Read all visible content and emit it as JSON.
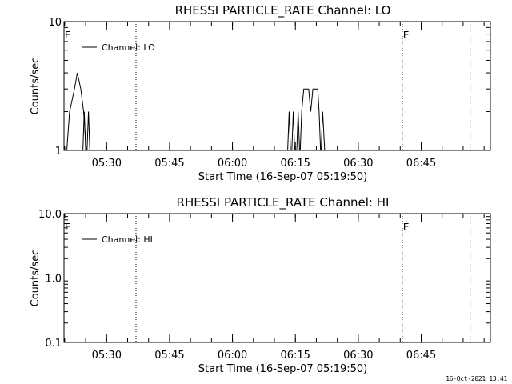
{
  "chart_data": [
    {
      "type": "line",
      "title": "RHESSI PARTICLE_RATE Channel: LO",
      "xlabel": "Start Time (16-Sep-07 05:19:50)",
      "ylabel": "Counts/sec",
      "yscale": "log",
      "ylim": [
        1,
        10
      ],
      "ytick_labels": [
        "1",
        "10"
      ],
      "xlim": [
        "05:19:50",
        "07:01:30"
      ],
      "xtick_labels": [
        "05:30",
        "05:45",
        "06:00",
        "06:15",
        "06:30",
        "06:45"
      ],
      "legend": {
        "label": "Channel: LO",
        "placement": "top-left"
      },
      "markers": {
        "label": "E",
        "times": [
          "05:19:50",
          "06:40:30"
        ]
      },
      "vlines": [
        "05:37:00",
        "06:40:30",
        "06:56:40"
      ],
      "series": [
        {
          "name": "Channel: LO",
          "segments": [
            [
              [
                "05:20:30",
                1
              ],
              [
                "05:21:10",
                2
              ],
              [
                "05:22:20",
                3
              ],
              [
                "05:23:00",
                4
              ],
              [
                "05:23:50",
                3
              ],
              [
                "05:24:30",
                2
              ],
              [
                "05:25:10",
                1
              ]
            ],
            [
              [
                "05:24:20",
                1
              ],
              [
                "05:24:40",
                2
              ],
              [
                "05:25:00",
                1
              ]
            ],
            [
              [
                "05:25:20",
                1
              ],
              [
                "05:25:40",
                2
              ],
              [
                "05:26:00",
                1
              ]
            ],
            [
              [
                "06:13:10",
                1
              ],
              [
                "06:13:30",
                2
              ],
              [
                "06:13:50",
                1
              ]
            ],
            [
              [
                "06:14:10",
                1
              ],
              [
                "06:14:30",
                2
              ],
              [
                "06:14:50",
                1
              ]
            ],
            [
              [
                "06:15:20",
                1
              ],
              [
                "06:15:40",
                2
              ],
              [
                "06:16:00",
                1
              ]
            ],
            [
              [
                "06:16:10",
                1
              ],
              [
                "06:16:30",
                2
              ],
              [
                "06:17:00",
                3
              ],
              [
                "06:18:10",
                3
              ],
              [
                "06:18:40",
                2
              ],
              [
                "06:19:10",
                3
              ],
              [
                "06:20:20",
                3
              ],
              [
                "06:20:40",
                2
              ],
              [
                "06:21:00",
                1
              ]
            ],
            [
              [
                "06:21:10",
                1
              ],
              [
                "06:21:30",
                2
              ],
              [
                "06:22:00",
                1
              ]
            ]
          ]
        }
      ]
    },
    {
      "type": "line",
      "title": "RHESSI PARTICLE_RATE Channel: HI",
      "xlabel": "Start Time (16-Sep-07 05:19:50)",
      "ylabel": "Counts/sec",
      "yscale": "log",
      "ylim": [
        0.1,
        10
      ],
      "ytick_labels": [
        "0.1",
        "1.0",
        "10.0"
      ],
      "xlim": [
        "05:19:50",
        "07:01:30"
      ],
      "xtick_labels": [
        "05:30",
        "05:45",
        "06:00",
        "06:15",
        "06:30",
        "06:45"
      ],
      "legend": {
        "label": "Channel: HI",
        "placement": "top-left"
      },
      "markers": {
        "label": "E",
        "times": [
          "05:19:50",
          "06:40:30"
        ]
      },
      "vlines": [
        "05:37:00",
        "06:40:30",
        "06:56:40"
      ],
      "series": [
        {
          "name": "Channel: HI",
          "segments": []
        }
      ]
    }
  ],
  "timestamp": "16-Oct-2021 13:41"
}
